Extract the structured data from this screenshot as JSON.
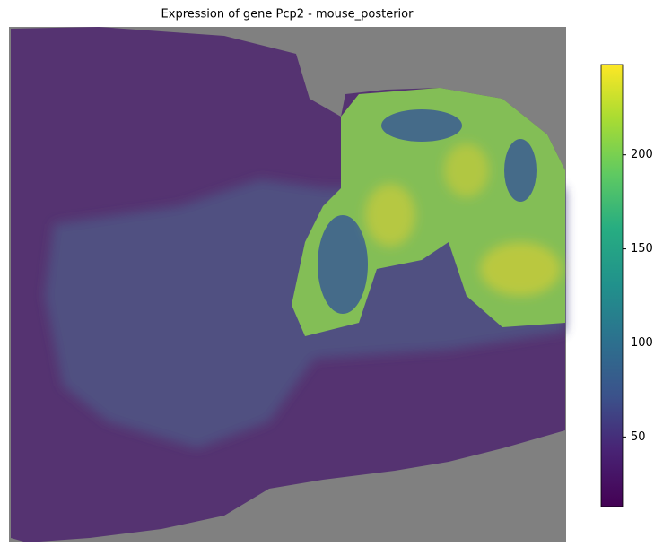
{
  "chart_data": {
    "type": "heatmap",
    "title": "Expression of gene Pcp2 - mouse_posterior",
    "background": "#808080",
    "values": [
      35,
      60,
      90,
      205,
      230,
      232,
      228
    ],
    "clim": [
      13,
      248
    ],
    "cticks": [
      50,
      100,
      150,
      200
    ]
  }
}
